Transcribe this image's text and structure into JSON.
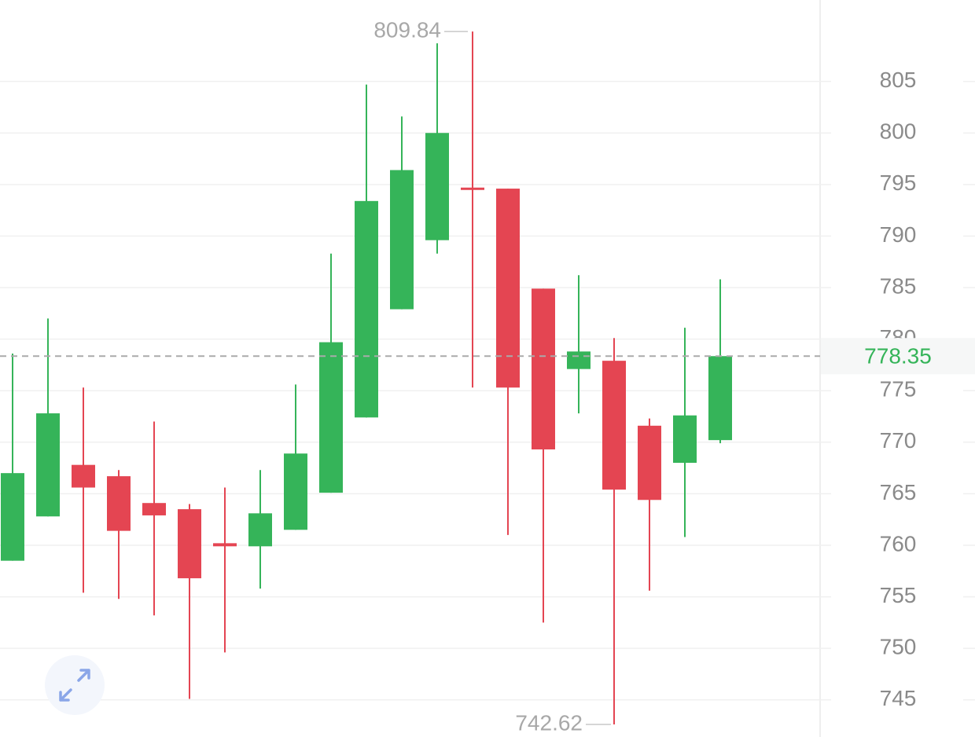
{
  "chart_data": {
    "type": "candlestick",
    "open": [
      758.5,
      762.8,
      767.8,
      766.7,
      764.1,
      763.5,
      760.2,
      759.9,
      761.5,
      765.1,
      772.4,
      782.9,
      789.6,
      794.7,
      794.6,
      784.9,
      777.1,
      777.9,
      771.6,
      768.0,
      770.2
    ],
    "high": [
      778.6,
      782.0,
      775.3,
      767.3,
      772.0,
      764.0,
      765.6,
      767.3,
      775.6,
      788.3,
      804.7,
      801.6,
      808.7,
      809.84,
      794.6,
      784.9,
      786.2,
      780.1,
      772.3,
      781.1,
      785.8
    ],
    "low": [
      758.5,
      762.8,
      755.4,
      754.8,
      753.2,
      745.1,
      749.6,
      755.8,
      761.5,
      765.1,
      772.4,
      782.9,
      788.3,
      775.3,
      761.0,
      752.5,
      772.8,
      742.62,
      755.6,
      760.8,
      769.9
    ],
    "close": [
      767.0,
      772.8,
      765.6,
      761.4,
      762.9,
      756.8,
      759.9,
      763.1,
      768.9,
      779.7,
      793.4,
      796.4,
      800.0,
      794.6,
      775.3,
      769.3,
      778.8,
      765.4,
      764.4,
      772.6,
      778.35
    ],
    "up_color": "#35b459",
    "down_color": "#e44552",
    "ylim": [
      741.4,
      812.9
    ],
    "yticks": [
      745,
      750,
      755,
      760,
      765,
      770,
      775,
      780,
      785,
      790,
      795,
      800,
      805
    ],
    "grid": true
  }
}
